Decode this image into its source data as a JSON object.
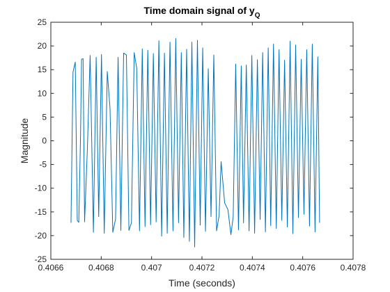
{
  "chart_data": {
    "type": "line",
    "title": "Time domain signal of y",
    "title_subscript": "Q",
    "xlabel": "Time (seconds)",
    "ylabel": "Magnitude",
    "xlim": [
      0.4066,
      0.4078
    ],
    "ylim": [
      -25,
      25
    ],
    "xticks": [
      0.4066,
      0.4068,
      0.407,
      0.4072,
      0.4074,
      0.4076,
      0.4078
    ],
    "xtick_labels": [
      "0.4066",
      "0.4068",
      "0.407",
      "0.4072",
      "0.4074",
      "0.4076",
      "0.4078"
    ],
    "yticks": [
      -25,
      -20,
      -15,
      -10,
      -5,
      0,
      5,
      10,
      15,
      20,
      25
    ],
    "ytick_labels": [
      "-25",
      "-20",
      "-15",
      "-10",
      "-5",
      "0",
      "5",
      "10",
      "15",
      "20",
      "25"
    ],
    "grid": false,
    "line_color": "#0072bd",
    "series": [
      {
        "x": [
          0.40668,
          0.406688,
          0.406697,
          0.406705,
          0.406711,
          0.406718,
          0.406722,
          0.406728,
          0.406734,
          0.406745,
          0.406756,
          0.406769,
          0.40678,
          0.40679,
          0.406801,
          0.406812,
          0.406824,
          0.406835,
          0.406846,
          0.406857,
          0.406867,
          0.406878,
          0.406889,
          0.4069,
          0.40691,
          0.40692,
          0.406931,
          0.406941,
          0.406952,
          0.406963,
          0.406974,
          0.406985,
          0.406996,
          0.407007,
          0.407018,
          0.407029,
          0.40704,
          0.407051,
          0.407062,
          0.407073,
          0.407085,
          0.407096,
          0.407107,
          0.407118,
          0.407128,
          0.407139,
          0.40715,
          0.40716,
          0.407171,
          0.407182,
          0.407193,
          0.407203,
          0.407214,
          0.407225,
          0.407236,
          0.407247,
          0.407258,
          0.407268,
          0.407276,
          0.40729,
          0.407303,
          0.407315,
          0.407324,
          0.407334,
          0.407345,
          0.407356,
          0.407365,
          0.407376,
          0.407387,
          0.407398,
          0.407409,
          0.40742,
          0.407431,
          0.407441,
          0.407452,
          0.407463,
          0.407473,
          0.407484,
          0.407495,
          0.407506,
          0.407517,
          0.407528,
          0.407539,
          0.40755,
          0.407561,
          0.407572,
          0.407583,
          0.407594,
          0.407605,
          0.407616,
          0.407627,
          0.407638,
          0.407649,
          0.40766,
          0.407667
        ],
        "y": [
          -17.3,
          14.5,
          16.6,
          -16.8,
          -17.2,
          1.5,
          17.2,
          17.3,
          -17.1,
          -1.8,
          18.0,
          -19.3,
          17.6,
          -16.0,
          18.2,
          -19.5,
          14.6,
          6.8,
          -19.3,
          -16.5,
          17.6,
          -18.9,
          18.5,
          18.1,
          -18.9,
          -17.3,
          18.6,
          15.3,
          -19.0,
          19.4,
          -18.1,
          19.1,
          -17.7,
          18.4,
          -17.1,
          21.1,
          -20.1,
          18.5,
          -19.5,
          20.8,
          -19.0,
          21.6,
          -17.3,
          18.6,
          -20.4,
          19.3,
          -21.2,
          20.8,
          -22.4,
          21.2,
          -17.8,
          19.6,
          -19.1,
          15.2,
          -16.0,
          18.1,
          -19.0,
          -15.8,
          -4.4,
          -13.1,
          -14.5,
          -19.8,
          -16.0,
          16.2,
          -18.8,
          15.8,
          -17.3,
          16.0,
          -19.0,
          18.0,
          -19.5,
          17.1,
          -16.6,
          18.6,
          -19.2,
          19.6,
          -17.9,
          20.4,
          -18.5,
          19.2,
          -16.8,
          17.0,
          -18.2,
          21.0,
          -19.6,
          20.2,
          -16.2,
          17.2,
          -15.5,
          19.2,
          -18.0,
          20.4,
          -19.2,
          17.7,
          -17.3
        ]
      }
    ]
  }
}
